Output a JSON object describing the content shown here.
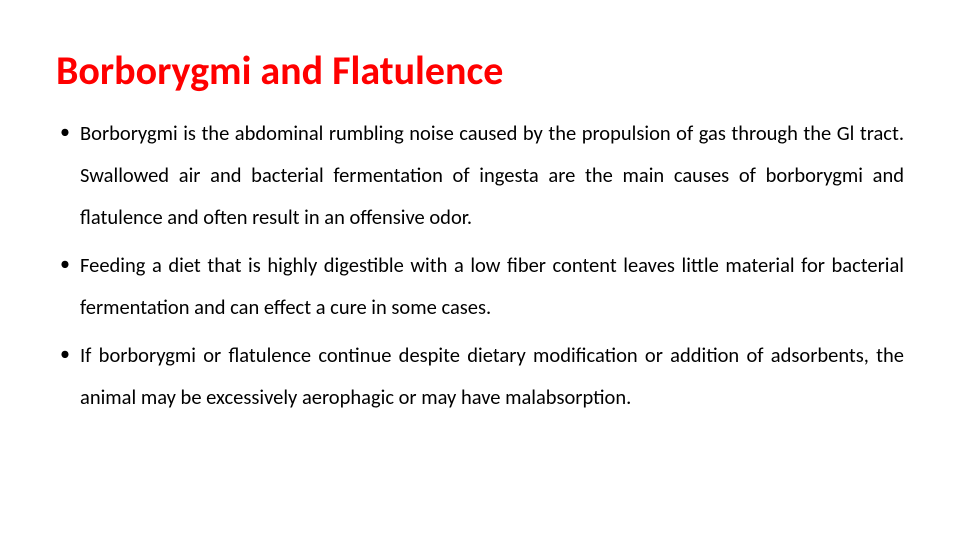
{
  "slide": {
    "title": "Borborygmi and Flatulence",
    "title_color": "#ff0000",
    "body_color": "#000000",
    "background_color": "#ffffff",
    "title_fontsize": 40,
    "body_fontsize": 20.5,
    "line_height": 2.05,
    "bullets": [
      "Borborygmi is the abdominal rumbling noise caused by the propulsion of gas through the Gl tract. Swallowed air and bacterial fermentation of ingesta are the main causes of borborygmi and flatulence and often result in an offensive odor.",
      "Feeding a diet that is highly digestible with a low fiber content leaves little material for bacterial fermentation and can effect a cure in some cases.",
      "If borborygmi or flatulence continue despite dietary modification or addition of adsorbents, the animal may be excessively aerophagic or may have malabsorption."
    ]
  }
}
